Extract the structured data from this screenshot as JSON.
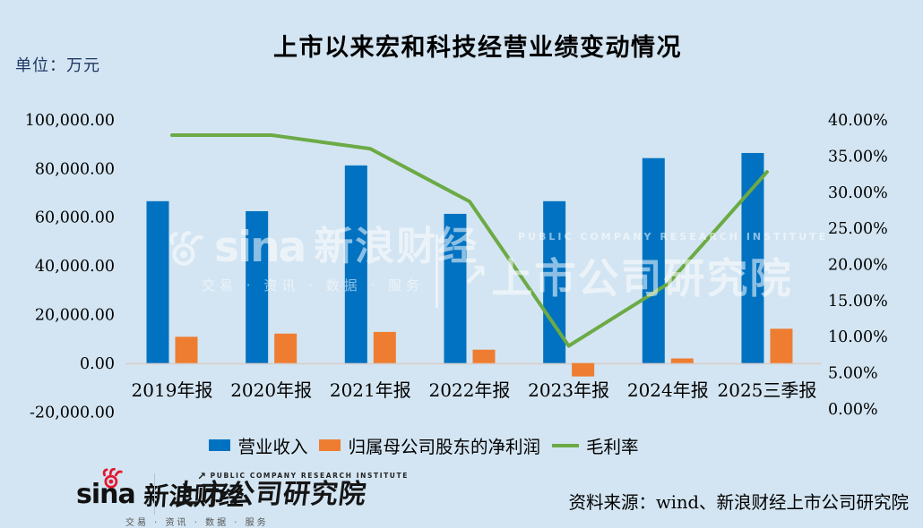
{
  "title": "上市以来宏和科技经营业绩变动情况",
  "unit_label": "单位：万元",
  "source": "资料来源：wind、新浪财经上市公司研究院",
  "watermark": {
    "sina_word": "sina",
    "brand": "新浪财经",
    "tagline": "交易 · 资讯 · 数据 · 服务",
    "institute_en": "PUBLIC COMPANY RESEARCH INSTITUTE",
    "institute": "上市公司研究院"
  },
  "footer": {
    "sina_word": "sina",
    "brand": "新浪财经",
    "tagline": "交易 · 资讯 · 数据 · 服务",
    "institute_en": "PUBLIC COMPANY RESEARCH INSTITUTE",
    "institute": "上市公司研究院"
  },
  "colors": {
    "background": "#D3E5F2",
    "revenue_bar": "#0072C1",
    "profit_bar": "#EE7D31",
    "margin_line": "#6CAA45",
    "unit_label_color": "#1F3864",
    "axis_line": "#D9CDC9",
    "sina_red": "#E6162D"
  },
  "chart_data": {
    "type": "bar",
    "title": "上市以来宏和科技经营业绩变动情况",
    "unit": "万元",
    "grid": false,
    "legend_position": "bottom",
    "categories": [
      "2019年报",
      "2020年报",
      "2021年报",
      "2022年报",
      "2023年报",
      "2024年报",
      "2025三季报"
    ],
    "series": [
      {
        "name": "营业收入",
        "type": "bar",
        "axis": "left",
        "unit": "万元",
        "values": [
          66500,
          62400,
          81200,
          61300,
          66500,
          84200,
          86300
        ]
      },
      {
        "name": "归属母公司股东的净利润",
        "type": "bar",
        "axis": "left",
        "unit": "万元",
        "values": [
          10800,
          12100,
          12800,
          5500,
          -5500,
          1900,
          14100
        ]
      },
      {
        "name": "毛利率",
        "type": "line",
        "axis": "right",
        "unit": "%",
        "values": [
          37.9,
          37.9,
          36.0,
          28.7,
          8.7,
          17.3,
          32.8
        ]
      }
    ],
    "left_axis": {
      "min": -20000,
      "max": 100000,
      "tick_values": [
        100000,
        80000,
        60000,
        40000,
        20000,
        0,
        -20000
      ],
      "tick_labels": [
        "100,000.00",
        "80,000.00",
        "60,000.00",
        "40,000.00",
        "20,000.00",
        "0.00",
        "-20,000.00"
      ]
    },
    "right_axis": {
      "min": 0,
      "max": 40,
      "tick_values": [
        40,
        35,
        30,
        25,
        20,
        15,
        10,
        5,
        0
      ],
      "tick_labels": [
        "40.00%",
        "35.00%",
        "30.00%",
        "25.00%",
        "20.00%",
        "15.00%",
        "10.00%",
        "5.00%",
        "0.00%"
      ]
    }
  }
}
